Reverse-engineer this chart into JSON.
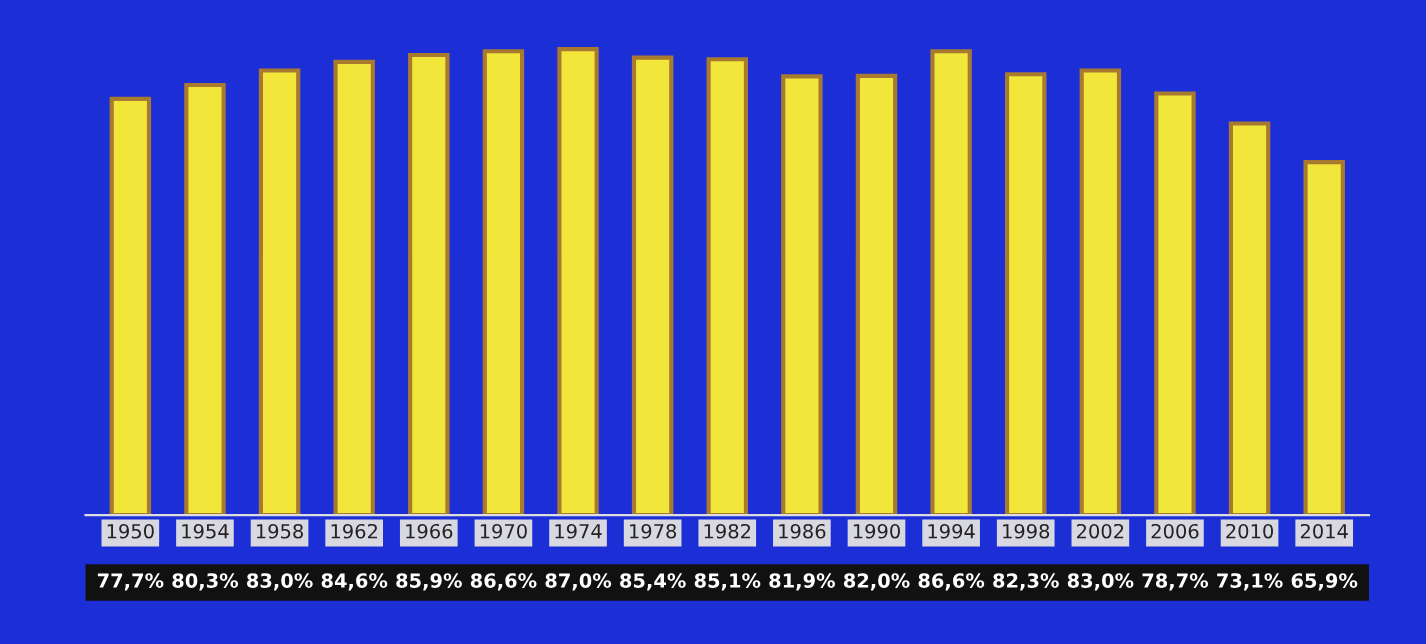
{
  "chart_data": {
    "type": "bar",
    "categories": [
      "1950",
      "1954",
      "1958",
      "1962",
      "1966",
      "1970",
      "1974",
      "1978",
      "1982",
      "1986",
      "1990",
      "1994",
      "1998",
      "2002",
      "2006",
      "2010",
      "2014"
    ],
    "values": [
      77.7,
      80.3,
      83.0,
      84.6,
      85.9,
      86.6,
      87.0,
      85.4,
      85.1,
      81.9,
      82.0,
      86.6,
      82.3,
      83.0,
      78.7,
      73.1,
      65.9
    ],
    "value_labels": [
      "77,7%",
      "80,3%",
      "83,0%",
      "84,6%",
      "85,9%",
      "86,6%",
      "87,0%",
      "85,4%",
      "85,1%",
      "81,9%",
      "82,0%",
      "86,6%",
      "82,3%",
      "83,0%",
      "78,7%",
      "73,1%",
      "65,9%"
    ],
    "color": "#f2e63a",
    "grid": false
  }
}
